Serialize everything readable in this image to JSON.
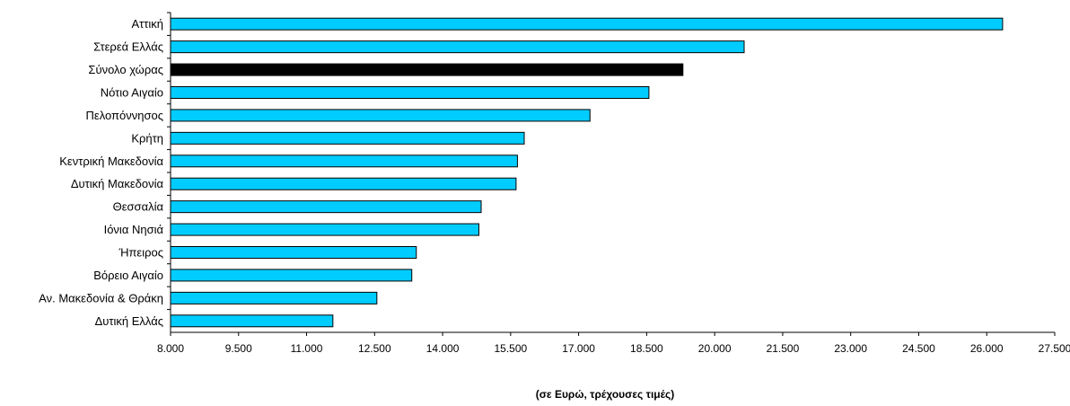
{
  "chart_data": {
    "type": "bar",
    "orientation": "horizontal",
    "categories": [
      "Αττική",
      "Στερεά Ελλάς",
      "Σύνολο χώρας",
      "Νότιο Αιγαίο",
      "Πελοπόννησος",
      "Κρήτη",
      "Κεντρική Μακεδονία",
      "Δυτική Μακεδονία",
      "Θεσσαλία",
      "Ιόνια Νησιά",
      "Ήπειρος",
      "Βόρειο Αιγαίο",
      "Αν. Μακεδονία & Θράκη",
      "Δυτική Ελλάς"
    ],
    "values": [
      26350,
      20650,
      19300,
      18550,
      17250,
      15800,
      15650,
      15620,
      14850,
      14800,
      13420,
      13320,
      12550,
      11580
    ],
    "highlight": "Σύνολο χώρας",
    "colors": {
      "bar": "#00CCFF",
      "highlight": "#000000",
      "border": "#000000"
    },
    "xlim": [
      8000,
      27500
    ],
    "xticks": [
      8000,
      9500,
      11000,
      12500,
      14000,
      15500,
      17000,
      18500,
      20000,
      21500,
      23000,
      24500,
      26000,
      27500
    ],
    "xtick_labels": [
      "8.000",
      "9.500",
      "11.000",
      "12.500",
      "14.000",
      "15.500",
      "17.000",
      "18.500",
      "20.000",
      "21.500",
      "23.000",
      "24.500",
      "26.000",
      "27.500"
    ],
    "xlabel": "(σε Ευρώ, τρέχουσες τιμές)",
    "ylabel": "",
    "title": "",
    "grid": false
  }
}
